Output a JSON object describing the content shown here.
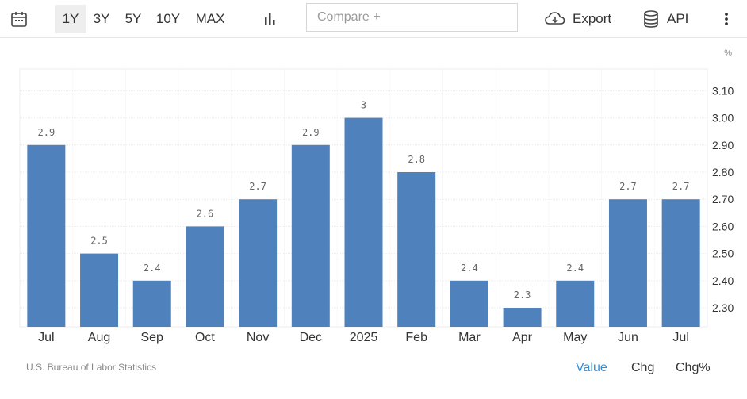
{
  "toolbar": {
    "calendar_icon": "calendar-icon",
    "ranges": [
      "1Y",
      "3Y",
      "5Y",
      "10Y",
      "MAX"
    ],
    "active_range": "1Y",
    "chart_type_icon": "bar-chart-icon",
    "compare_placeholder": "Compare +",
    "export_label": "Export",
    "export_icon": "cloud-download-icon",
    "api_label": "API",
    "api_icon": "database-icon",
    "more_icon": "vertical-dots-icon"
  },
  "chart_data": {
    "type": "bar",
    "unit": "%",
    "categories": [
      "Jul",
      "Aug",
      "Sep",
      "Oct",
      "Nov",
      "Dec",
      "2025",
      "Feb",
      "Mar",
      "Apr",
      "May",
      "Jun",
      "Jul"
    ],
    "values": [
      2.9,
      2.5,
      2.4,
      2.6,
      2.7,
      2.9,
      3,
      2.8,
      2.4,
      2.3,
      2.4,
      2.7,
      2.7
    ],
    "value_labels": [
      "2.9",
      "2.5",
      "2.4",
      "2.6",
      "2.7",
      "2.9",
      "3",
      "2.8",
      "2.4",
      "2.3",
      "2.4",
      "2.7",
      "2.7"
    ],
    "yticks": [
      "2.30",
      "2.40",
      "2.50",
      "2.60",
      "2.70",
      "2.80",
      "2.90",
      "3.00",
      "3.10"
    ],
    "ylim": [
      2.23,
      3.18
    ],
    "y_axis_position": "right",
    "grid": true,
    "bar_color": "#4f81bd"
  },
  "footer": {
    "source": "U.S. Bureau of Labor Statistics",
    "buttons": [
      "Value",
      "Chg",
      "Chg%"
    ],
    "active_button": "Value",
    "active_color": "#2f8fe0"
  }
}
